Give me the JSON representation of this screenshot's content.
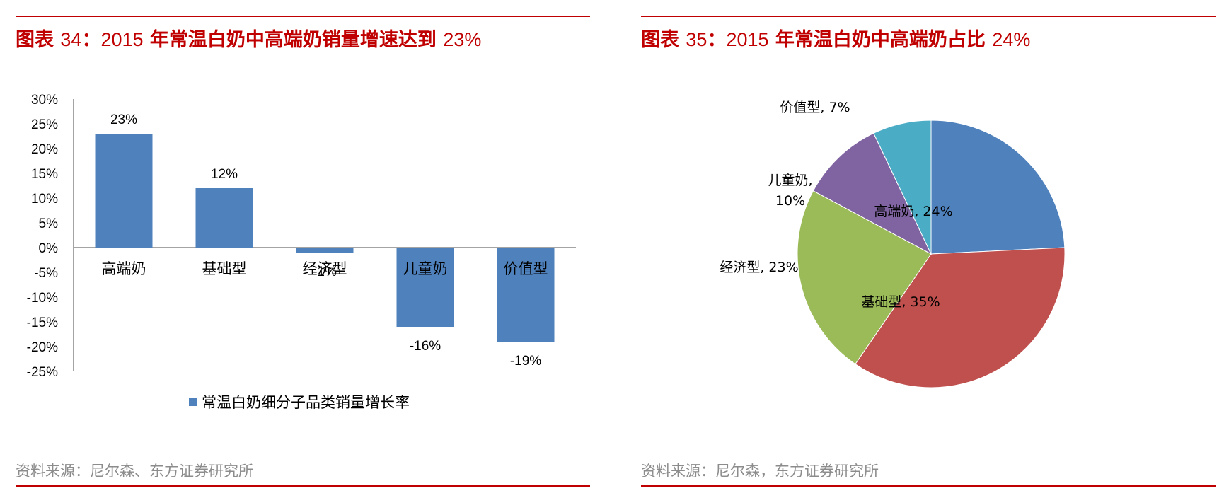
{
  "left_panel": {
    "title_prefix": "图表",
    "title_num": "34",
    "title_sep": "：",
    "title_year": "2015",
    "title_main": " 年常温白奶中高端奶销量增速达到 ",
    "title_pct": "23%",
    "source": "资料来源：尼尔森、东方证券研究所"
  },
  "right_panel": {
    "title_prefix": "图表",
    "title_num": "35",
    "title_sep": "：",
    "title_year": "2015",
    "title_main": " 年常温白奶中高端奶占比 ",
    "title_pct": "24%",
    "source": "资料来源：尼尔森，东方证券研究所"
  },
  "chart_data": [
    {
      "type": "bar",
      "title": "2015年常温白奶中高端奶销量增速达到23%",
      "categories": [
        "高端奶",
        "基础型",
        "经济型",
        "儿童奶",
        "价值型"
      ],
      "series": [
        {
          "name": "常温白奶细分子品类销量增长率",
          "values": [
            23,
            12,
            -1,
            -16,
            -19
          ],
          "labels": [
            "23%",
            "12%",
            "-1%",
            "-16%",
            "-19%"
          ],
          "color": "#4f81bd"
        }
      ],
      "ylim": [
        -25,
        30
      ],
      "yticks": [
        30,
        25,
        20,
        15,
        10,
        5,
        0,
        -5,
        -10,
        -15,
        -20,
        -25
      ],
      "ytick_labels": [
        "30%",
        "25%",
        "20%",
        "15%",
        "10%",
        "5%",
        "0%",
        "-5%",
        "-10%",
        "-15%",
        "-20%",
        "-25%"
      ],
      "xlabel": "",
      "ylabel": "",
      "grid": false,
      "legend": "bottom"
    },
    {
      "type": "pie",
      "title": "2015年常温白奶中高端奶占比24%",
      "slices": [
        {
          "name": "高端奶",
          "value": 24,
          "label": "高端奶, 24%",
          "color": "#4f81bd"
        },
        {
          "name": "基础型",
          "value": 35,
          "label": "基础型, 35%",
          "color": "#c0504d"
        },
        {
          "name": "经济型",
          "value": 23,
          "label": "经济型, 23%",
          "color": "#9bbb59"
        },
        {
          "name": "儿童奶",
          "value": 10,
          "label_line1": "儿童奶,",
          "label_line2": "10%",
          "color": "#8064a2"
        },
        {
          "name": "价值型",
          "value": 7,
          "label": "价值型, 7%",
          "color": "#4bacc6"
        }
      ]
    }
  ]
}
